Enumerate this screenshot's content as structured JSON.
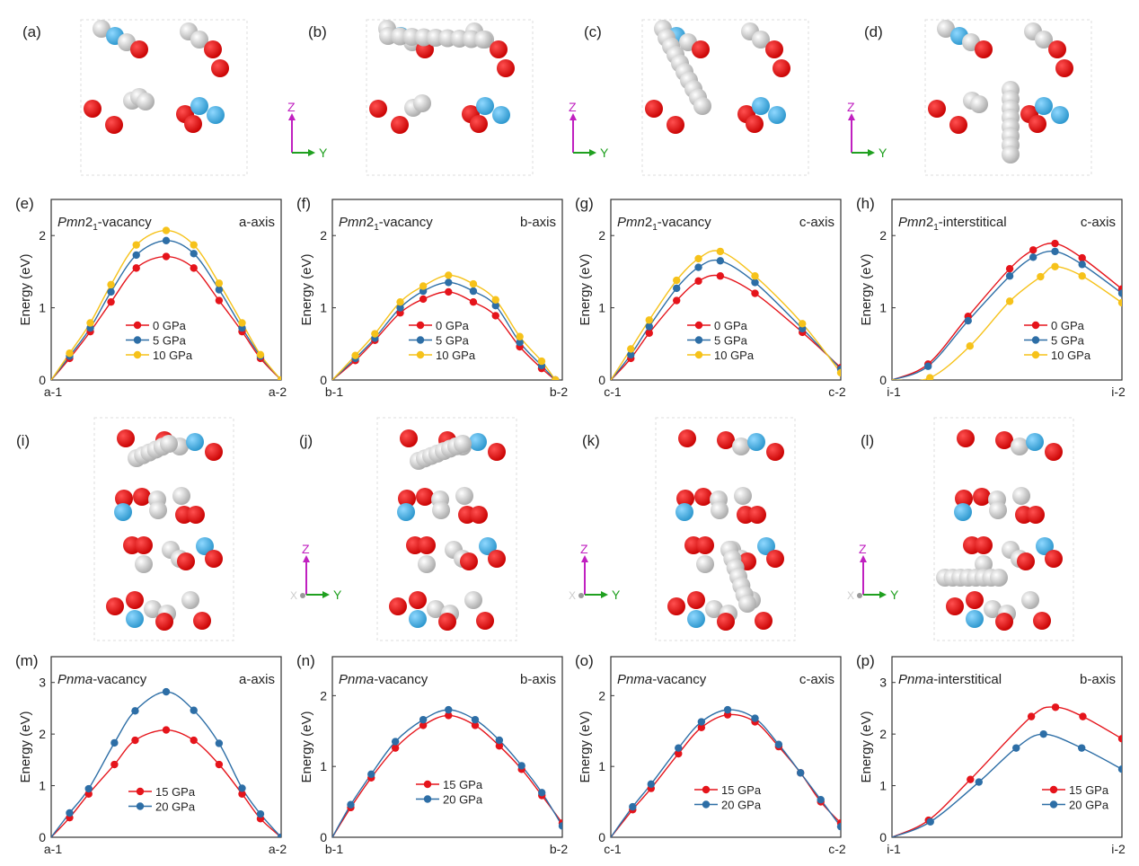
{
  "structure_panels": [
    {
      "label": "(a)"
    },
    {
      "label": "(b)"
    },
    {
      "label": "(c)"
    },
    {
      "label": "(d)"
    },
    {
      "label": "(i)"
    },
    {
      "label": "(j)"
    },
    {
      "label": "(k)"
    },
    {
      "label": "(l)"
    }
  ],
  "axes_labels": {
    "z": "Z",
    "y": "Y",
    "x": "X"
  },
  "colors": {
    "red": "#e5141b",
    "blue": "#2d6ea6",
    "yellow": "#f6c21a",
    "O_atom": "#e01010",
    "white_atom": "#d8d8d8",
    "blue_atom": "#3aa8dc"
  },
  "chart_data": [
    {
      "id": "e",
      "panel": "(e)",
      "type": "line",
      "title": {
        "italic": "Pmn",
        "normal": "2",
        "sub": "1",
        "suffix": "-vacancy"
      },
      "axis_note": "a-axis",
      "ylabel": "Energy (eV)",
      "xticks": [
        "a-1",
        "a-2"
      ],
      "ylim": [
        0,
        2.5
      ],
      "yticks": [
        0,
        1,
        2
      ],
      "series": [
        {
          "name": "0 GPa",
          "color": "#e5141b",
          "x": [
            0,
            0.08,
            0.17,
            0.26,
            0.37,
            0.5,
            0.62,
            0.73,
            0.83,
            0.91,
            1
          ],
          "y": [
            0,
            0.3,
            0.67,
            1.08,
            1.55,
            1.71,
            1.55,
            1.1,
            0.67,
            0.3,
            0
          ]
        },
        {
          "name": "5 GPa",
          "color": "#2d6ea6",
          "x": [
            0,
            0.08,
            0.17,
            0.26,
            0.37,
            0.5,
            0.62,
            0.73,
            0.83,
            0.91,
            1
          ],
          "y": [
            0,
            0.33,
            0.72,
            1.22,
            1.73,
            1.93,
            1.75,
            1.25,
            0.72,
            0.33,
            0
          ]
        },
        {
          "name": "10 GPa",
          "color": "#f6c21a",
          "x": [
            0,
            0.08,
            0.17,
            0.26,
            0.37,
            0.5,
            0.62,
            0.73,
            0.83,
            0.91,
            1
          ],
          "y": [
            0,
            0.37,
            0.79,
            1.32,
            1.87,
            2.07,
            1.87,
            1.34,
            0.79,
            0.35,
            0
          ]
        }
      ]
    },
    {
      "id": "f",
      "panel": "(f)",
      "type": "line",
      "title": {
        "italic": "Pmn",
        "normal": "2",
        "sub": "1",
        "suffix": "-vacancy"
      },
      "axis_note": "b-axis",
      "ylabel": "Energy (eV)",
      "xticks": [
        "b-1",
        "b-2"
      ],
      "ylim": [
        0,
        2.5
      ],
      "yticks": [
        0,
        1,
        2
      ],
      "series": [
        {
          "name": "0 GPa",
          "color": "#e5141b",
          "x": [
            0,
            0.1,
            0.185,
            0.295,
            0.395,
            0.505,
            0.613,
            0.71,
            0.815,
            0.91,
            0.97
          ],
          "y": [
            0,
            0.27,
            0.55,
            0.93,
            1.12,
            1.22,
            1.08,
            0.89,
            0.46,
            0.16,
            0
          ]
        },
        {
          "name": "5 GPa",
          "color": "#2d6ea6",
          "x": [
            0,
            0.1,
            0.185,
            0.295,
            0.395,
            0.505,
            0.613,
            0.71,
            0.815,
            0.91,
            0.97
          ],
          "y": [
            0,
            0.3,
            0.58,
            1.0,
            1.23,
            1.35,
            1.23,
            1.03,
            0.52,
            0.2,
            0
          ]
        },
        {
          "name": "10 GPa",
          "color": "#f6c21a",
          "x": [
            0,
            0.1,
            0.185,
            0.295,
            0.395,
            0.505,
            0.613,
            0.71,
            0.815,
            0.91,
            0.97
          ],
          "y": [
            0,
            0.34,
            0.64,
            1.08,
            1.3,
            1.45,
            1.33,
            1.11,
            0.6,
            0.26,
            0
          ]
        }
      ]
    },
    {
      "id": "g",
      "panel": "(g)",
      "type": "line",
      "title": {
        "italic": "Pmn",
        "normal": "2",
        "sub": "1",
        "suffix": "-vacancy"
      },
      "axis_note": "c-axis",
      "ylabel": "Energy (eV)",
      "xticks": [
        "c-1",
        "c-2"
      ],
      "ylim": [
        0,
        2.5
      ],
      "yticks": [
        0,
        1,
        2
      ],
      "series": [
        {
          "name": "0 GPa",
          "color": "#e5141b",
          "x": [
            0,
            0.087,
            0.167,
            0.286,
            0.381,
            0.476,
            0.627,
            0.833,
            1
          ],
          "y": [
            0,
            0.3,
            0.65,
            1.1,
            1.37,
            1.44,
            1.2,
            0.66,
            0.17
          ]
        },
        {
          "name": "5 GPa",
          "color": "#2d6ea6",
          "x": [
            0,
            0.087,
            0.167,
            0.286,
            0.381,
            0.476,
            0.627,
            0.833,
            1
          ],
          "y": [
            0,
            0.35,
            0.74,
            1.27,
            1.56,
            1.65,
            1.35,
            0.71,
            0.15
          ]
        },
        {
          "name": "10 GPa",
          "color": "#f6c21a",
          "x": [
            0,
            0.087,
            0.167,
            0.286,
            0.381,
            0.476,
            0.627,
            0.833,
            1
          ],
          "y": [
            0,
            0.43,
            0.83,
            1.38,
            1.68,
            1.78,
            1.44,
            0.78,
            0.1
          ]
        }
      ]
    },
    {
      "id": "h",
      "panel": "(h)",
      "type": "line",
      "title": {
        "italic": "Pmn",
        "normal": "2",
        "sub": "1",
        "suffix": "-interstitical"
      },
      "axis_note": "c-axis",
      "ylabel": "Energy (eV)",
      "xticks": [
        "i-1",
        "i-2"
      ],
      "ylim": [
        0,
        2.5
      ],
      "yticks": [
        0,
        1,
        2
      ],
      "series": [
        {
          "name": "0 GPa",
          "color": "#e5141b",
          "x": [
            0,
            0.157,
            0.331,
            0.512,
            0.614,
            0.709,
            0.827,
            1
          ],
          "y": [
            0,
            0.22,
            0.88,
            1.54,
            1.8,
            1.89,
            1.69,
            1.26
          ]
        },
        {
          "name": "5 GPa",
          "color": "#2d6ea6",
          "x": [
            0,
            0.157,
            0.331,
            0.512,
            0.614,
            0.709,
            0.827,
            1
          ],
          "y": [
            0,
            0.19,
            0.82,
            1.44,
            1.7,
            1.78,
            1.6,
            1.2
          ]
        },
        {
          "name": "10 GPa",
          "color": "#f6c21a",
          "x": [
            0,
            0.165,
            0.339,
            0.512,
            0.646,
            0.709,
            0.827,
            1
          ],
          "y": [
            0,
            0.03,
            0.47,
            1.09,
            1.43,
            1.57,
            1.44,
            1.07
          ]
        }
      ]
    },
    {
      "id": "m",
      "panel": "(m)",
      "type": "line",
      "title": {
        "italic": "Pnma",
        "normal": "",
        "sub": "",
        "suffix": "-vacancy"
      },
      "axis_note": "a-axis",
      "ylabel": "Energy (eV)",
      "xticks": [
        "a-1",
        "a-2"
      ],
      "ylim": [
        0,
        3.5
      ],
      "yticks": [
        0,
        1,
        2,
        3
      ],
      "series": [
        {
          "name": "15 GPa",
          "color": "#e5141b",
          "x": [
            0,
            0.08,
            0.163,
            0.275,
            0.365,
            0.5,
            0.62,
            0.73,
            0.83,
            0.91,
            1
          ],
          "y": [
            0,
            0.38,
            0.84,
            1.41,
            1.88,
            2.08,
            1.88,
            1.41,
            0.84,
            0.36,
            0
          ]
        },
        {
          "name": "20 GPa",
          "color": "#2d6ea6",
          "x": [
            0,
            0.08,
            0.163,
            0.275,
            0.365,
            0.5,
            0.62,
            0.73,
            0.83,
            0.91,
            1
          ],
          "y": [
            0,
            0.47,
            0.94,
            1.83,
            2.45,
            2.82,
            2.46,
            1.82,
            0.95,
            0.45,
            0
          ]
        }
      ]
    },
    {
      "id": "n",
      "panel": "(n)",
      "type": "line",
      "title": {
        "italic": "Pnma",
        "normal": "",
        "sub": "",
        "suffix": "-vacancy"
      },
      "axis_note": "b-axis",
      "ylabel": "Energy (eV)",
      "xticks": [
        "b-1",
        "b-2"
      ],
      "ylim": [
        0,
        2.55
      ],
      "yticks": [
        0,
        1,
        2
      ],
      "series": [
        {
          "name": "15 GPa",
          "color": "#e5141b",
          "x": [
            0,
            0.08,
            0.169,
            0.274,
            0.395,
            0.505,
            0.621,
            0.726,
            0.823,
            0.911,
            1
          ],
          "y": [
            0,
            0.42,
            0.84,
            1.26,
            1.58,
            1.72,
            1.58,
            1.29,
            0.96,
            0.59,
            0.2
          ]
        },
        {
          "name": "20 GPa",
          "color": "#2d6ea6",
          "x": [
            0,
            0.08,
            0.169,
            0.274,
            0.395,
            0.505,
            0.621,
            0.726,
            0.823,
            0.911,
            1
          ],
          "y": [
            0,
            0.46,
            0.89,
            1.35,
            1.66,
            1.8,
            1.66,
            1.37,
            1.01,
            0.63,
            0.16
          ]
        }
      ]
    },
    {
      "id": "o",
      "panel": "(o)",
      "type": "line",
      "title": {
        "italic": "Pnma",
        "normal": "",
        "sub": "",
        "suffix": "-vacancy"
      },
      "axis_note": "c-axis",
      "ylabel": "Energy (eV)",
      "xticks": [
        "c-1",
        "c-2"
      ],
      "ylim": [
        0,
        2.55
      ],
      "yticks": [
        0,
        1,
        2
      ],
      "series": [
        {
          "name": "15 GPa",
          "color": "#e5141b",
          "x": [
            0,
            0.095,
            0.175,
            0.294,
            0.394,
            0.508,
            0.627,
            0.73,
            0.825,
            0.913,
            1
          ],
          "y": [
            0,
            0.39,
            0.69,
            1.18,
            1.55,
            1.73,
            1.63,
            1.28,
            0.91,
            0.5,
            0.2
          ]
        },
        {
          "name": "20 GPa",
          "color": "#2d6ea6",
          "x": [
            0,
            0.095,
            0.175,
            0.294,
            0.394,
            0.508,
            0.627,
            0.73,
            0.825,
            0.913,
            1
          ],
          "y": [
            0,
            0.43,
            0.75,
            1.26,
            1.63,
            1.8,
            1.68,
            1.31,
            0.91,
            0.53,
            0.15
          ]
        }
      ]
    },
    {
      "id": "p",
      "panel": "(p)",
      "type": "line",
      "title": {
        "italic": "Pnma",
        "normal": "",
        "sub": "",
        "suffix": "-interstitical"
      },
      "axis_note": "b-axis",
      "ylabel": "Energy (eV)",
      "xticks": [
        "i-1",
        "i-2"
      ],
      "ylim": [
        0,
        3.5
      ],
      "yticks": [
        0,
        1,
        2,
        3
      ],
      "series": [
        {
          "name": "15 GPa",
          "color": "#e5141b",
          "x": [
            0,
            0.159,
            0.341,
            0.606,
            0.711,
            0.83,
            1
          ],
          "y": [
            0,
            0.33,
            1.12,
            2.34,
            2.52,
            2.34,
            1.91
          ]
        },
        {
          "name": "20 GPa",
          "color": "#2d6ea6",
          "x": [
            0,
            0.167,
            0.378,
            0.54,
            0.659,
            0.825,
            1
          ],
          "y": [
            0,
            0.3,
            1.07,
            1.73,
            2.0,
            1.73,
            1.32
          ]
        }
      ]
    }
  ]
}
